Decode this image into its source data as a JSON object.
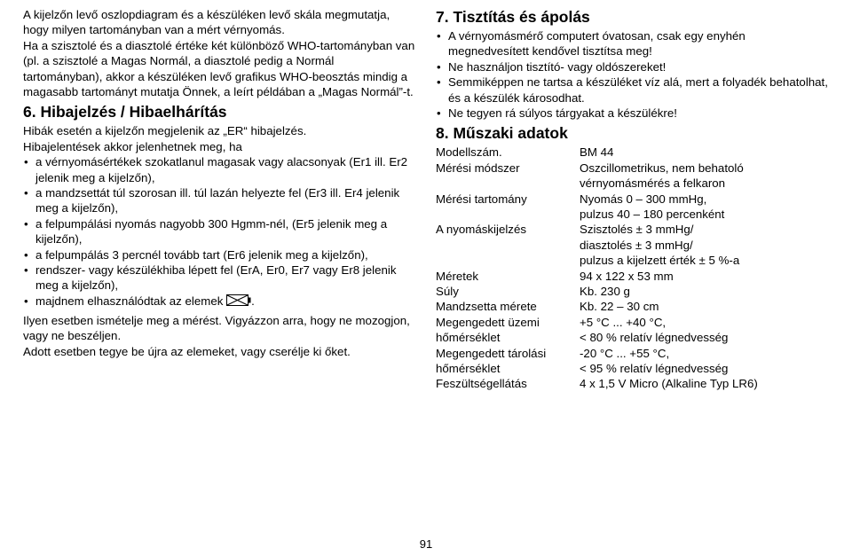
{
  "left": {
    "intro1": "A kijelzőn levő oszlopdiagram és a készüléken levő skála megmutatja, hogy milyen tartományban van a mért vérnyomás.",
    "intro2": "Ha a szisztolé és a diasztolé értéke két különböző WHO-tartományban van (pl. a szisztolé a Magas Normál, a diasztolé pedig a Normál tartományban), akkor a készüléken levő grafikus WHO-beosztás mindig a magasabb tartományt mutatja Önnek, a leírt példában a „Magas Normál”-t.",
    "h6": "6. Hibajelzés / Hibaelhárítás",
    "err1": "Hibák esetén a kijelzőn megjelenik az „ER“ hibajelzés.",
    "err2": "Hibajelentések akkor jelenhetnek meg, ha",
    "items": [
      "a vérnyomásértékek szokatlanul magasak vagy alacsonyak (Er1 ill. Er2 jelenik meg a kijelzőn),",
      "a mandzsettát túl szorosan ill. túl lazán helyezte fel (Er3 ill. Er4 jelenik meg a kijelzőn),",
      "a felpumpálási nyomás nagyobb 300 Hgmm-nél, (Er5 jelenik meg a kijelzőn),",
      "a felpumpálás 3 percnél tovább tart (Er6 jelenik meg a kijelzőn),",
      "rendszer- vagy készülékhiba lépett fel (ErA, Er0, Er7 vagy Er8 jelenik meg a kijelzőn),"
    ],
    "batt_item_pre": "majdnem elhasználódtak az elemek ",
    "batt_item_post": ".",
    "after1": "Ilyen esetben ismételje meg a mérést. Vigyázzon arra, hogy ne mozogjon, vagy ne beszéljen.",
    "after2": "Adott esetben tegye be újra az elemeket, vagy cserélje ki őket."
  },
  "right": {
    "h7": "7. Tisztítás és ápolás",
    "clean": [
      "A vérnyomásmérő computert óvatosan, csak egy enyhén megnedvesített kendővel tisztítsa meg!",
      "Ne használjon tisztító- vagy oldószereket!",
      "Semmiképpen ne tartsa a készüléket víz alá, mert a folyadék behatolhat, és a készülék károsodhat.",
      "Ne tegyen rá súlyos tárgyakat a készülékre!"
    ],
    "h8": "8. Műszaki adatok",
    "specs": [
      {
        "label": "Modellszám.",
        "val": "BM 44"
      },
      {
        "label": "Mérési módszer",
        "val": "Oszcillometrikus, nem behatoló vérnyomásmérés a felkaron"
      },
      {
        "label": "Mérési tartomány",
        "val": "Nyomás 0 – 300 mmHg,\npulzus 40 – 180 percenként"
      },
      {
        "label": "A nyomáskijelzés",
        "val": "Szisztolés ± 3 mmHg/\ndiasztolés ± 3 mmHg/\npulzus a kijelzett érték ± 5 %-a"
      },
      {
        "label": "Méretek",
        "val": "94 x 122 x 53 mm"
      },
      {
        "label": "Súly",
        "val": "Kb. 230 g"
      },
      {
        "label": "Mandzsetta mérete",
        "val": "Kb. 22 – 30 cm"
      },
      {
        "label": "Megengedett üzemi hőmérséklet",
        "val": "+5 °C ... +40 °C,\n< 80 % relatív légnedvesség"
      },
      {
        "label": "Megengedett tárolási hőmérséklet",
        "val": "-20 °C ... +55 °C,\n< 95 % relatív légnedvesség"
      },
      {
        "label": "Feszültségellátás",
        "val": "4 x 1,5 V Micro (Alkaline Typ LR6)"
      }
    ]
  },
  "page": "91",
  "colors": {
    "text": "#000000",
    "bg": "#ffffff"
  }
}
